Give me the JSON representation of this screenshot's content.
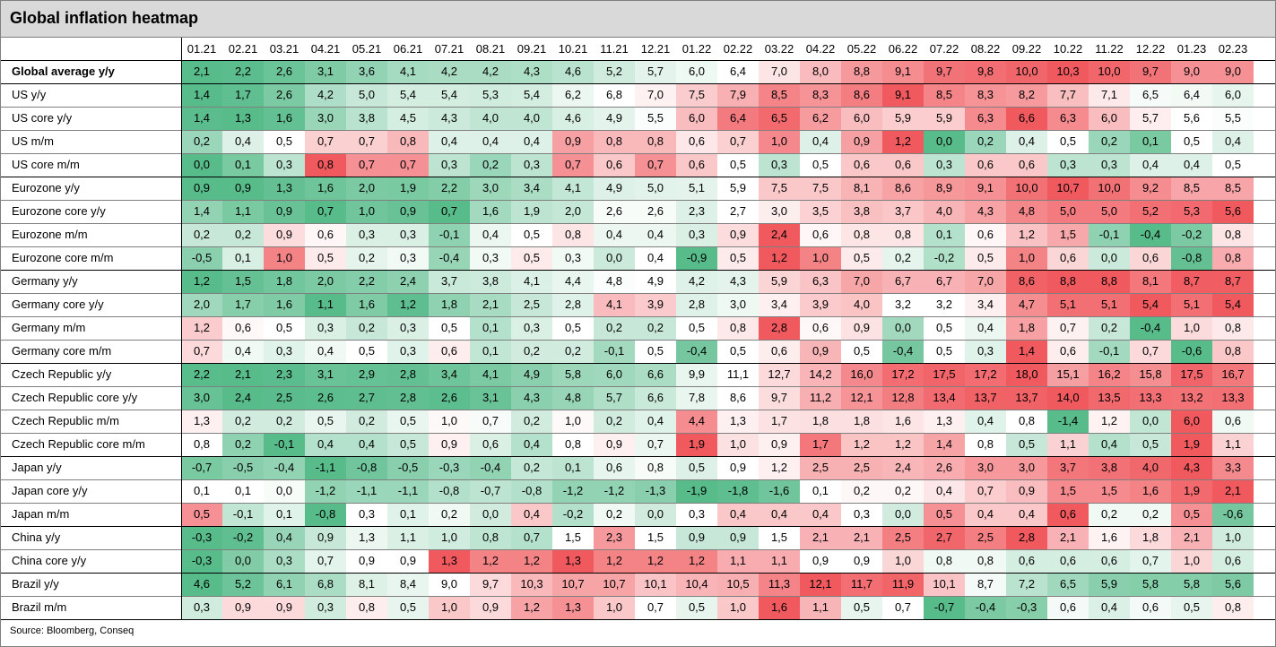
{
  "title": "Global inflation heatmap",
  "source": "Source: Bloomberg, Conseq",
  "colors": {
    "low": "#57bb8a",
    "mid": "#ffffff",
    "high": "#f0595e",
    "header_bg": "#d9d9d9"
  },
  "chart_data": {
    "type": "heatmap",
    "title": "Global inflation heatmap",
    "x": [
      "01.21",
      "02.21",
      "03.21",
      "04.21",
      "05.21",
      "06.21",
      "07.21",
      "08.21",
      "09.21",
      "10.21",
      "11.21",
      "12.21",
      "01.22",
      "02.22",
      "03.22",
      "04.22",
      "05.22",
      "06.22",
      "07.22",
      "08.22",
      "09.22",
      "10.22",
      "11.22",
      "12.22",
      "01.23",
      "02.23"
    ],
    "rows": [
      {
        "label": "Global average y/y",
        "group": 0,
        "values": [
          "2,1",
          "2,2",
          "2,6",
          "3,1",
          "3,6",
          "4,1",
          "4,2",
          "4,2",
          "4,3",
          "4,6",
          "5,2",
          "5,7",
          "6,0",
          "6,4",
          "7,0",
          "8,0",
          "8,8",
          "9,1",
          "9,7",
          "9,8",
          "10,0",
          "10,3",
          "10,0",
          "9,7",
          "9,0",
          "9,0"
        ]
      },
      {
        "label": "US y/y",
        "group": 1,
        "values": [
          "1,4",
          "1,7",
          "2,6",
          "4,2",
          "5,0",
          "5,4",
          "5,4",
          "5,3",
          "5,4",
          "6,2",
          "6,8",
          "7,0",
          "7,5",
          "7,9",
          "8,5",
          "8,3",
          "8,6",
          "9,1",
          "8,5",
          "8,3",
          "8,2",
          "7,7",
          "7,1",
          "6,5",
          "6,4",
          "6,0"
        ]
      },
      {
        "label": "US core y/y",
        "group": 1,
        "values": [
          "1,4",
          "1,3",
          "1,6",
          "3,0",
          "3,8",
          "4,5",
          "4,3",
          "4,0",
          "4,0",
          "4,6",
          "4,9",
          "5,5",
          "6,0",
          "6,4",
          "6,5",
          "6,2",
          "6,0",
          "5,9",
          "5,9",
          "6,3",
          "6,6",
          "6,3",
          "6,0",
          "5,7",
          "5,6",
          "5,5"
        ]
      },
      {
        "label": "US m/m",
        "group": 1,
        "values": [
          "0,2",
          "0,4",
          "0,5",
          "0,7",
          "0,7",
          "0,8",
          "0,4",
          "0,4",
          "0,4",
          "0,9",
          "0,8",
          "0,8",
          "0,6",
          "0,7",
          "1,0",
          "0,4",
          "0,9",
          "1,2",
          "0,0",
          "0,2",
          "0,4",
          "0,5",
          "0,2",
          "0,1",
          "0,5",
          "0,4"
        ]
      },
      {
        "label": "US core m/m",
        "group": 1,
        "values": [
          "0,0",
          "0,1",
          "0,3",
          "0,8",
          "0,7",
          "0,7",
          "0,3",
          "0,2",
          "0,3",
          "0,7",
          "0,6",
          "0,7",
          "0,6",
          "0,5",
          "0,3",
          "0,5",
          "0,6",
          "0,6",
          "0,3",
          "0,6",
          "0,6",
          "0,3",
          "0,3",
          "0,4",
          "0,4",
          "0,5"
        ]
      },
      {
        "label": "Eurozone y/y",
        "group": 2,
        "values": [
          "0,9",
          "0,9",
          "1,3",
          "1,6",
          "2,0",
          "1,9",
          "2,2",
          "3,0",
          "3,4",
          "4,1",
          "4,9",
          "5,0",
          "5,1",
          "5,9",
          "7,5",
          "7,5",
          "8,1",
          "8,6",
          "8,9",
          "9,1",
          "10,0",
          "10,7",
          "10,0",
          "9,2",
          "8,5",
          "8,5"
        ]
      },
      {
        "label": "Eurozone core y/y",
        "group": 2,
        "values": [
          "1,4",
          "1,1",
          "0,9",
          "0,7",
          "1,0",
          "0,9",
          "0,7",
          "1,6",
          "1,9",
          "2,0",
          "2,6",
          "2,6",
          "2,3",
          "2,7",
          "3,0",
          "3,5",
          "3,8",
          "3,7",
          "4,0",
          "4,3",
          "4,8",
          "5,0",
          "5,0",
          "5,2",
          "5,3",
          "5,6"
        ]
      },
      {
        "label": "Eurozone m/m",
        "group": 2,
        "values": [
          "0,2",
          "0,2",
          "0,9",
          "0,6",
          "0,3",
          "0,3",
          "-0,1",
          "0,4",
          "0,5",
          "0,8",
          "0,4",
          "0,4",
          "0,3",
          "0,9",
          "2,4",
          "0,6",
          "0,8",
          "0,8",
          "0,1",
          "0,6",
          "1,2",
          "1,5",
          "-0,1",
          "-0,4",
          "-0,2",
          "0,8"
        ]
      },
      {
        "label": "Eurozone core m/m",
        "group": 2,
        "values": [
          "-0,5",
          "0,1",
          "1,0",
          "0,5",
          "0,2",
          "0,3",
          "-0,4",
          "0,3",
          "0,5",
          "0,3",
          "0,0",
          "0,4",
          "-0,9",
          "0,5",
          "1,2",
          "1,0",
          "0,5",
          "0,2",
          "-0,2",
          "0,5",
          "1,0",
          "0,6",
          "0,0",
          "0,6",
          "-0,8",
          "0,8"
        ]
      },
      {
        "label": "Germany y/y",
        "group": 3,
        "values": [
          "1,2",
          "1,5",
          "1,8",
          "2,0",
          "2,2",
          "2,4",
          "3,7",
          "3,8",
          "4,1",
          "4,4",
          "4,8",
          "4,9",
          "4,2",
          "4,3",
          "5,9",
          "6,3",
          "7,0",
          "6,7",
          "6,7",
          "7,0",
          "8,6",
          "8,8",
          "8,8",
          "8,1",
          "8,7",
          "8,7"
        ]
      },
      {
        "label": "Germany core y/y",
        "group": 3,
        "values": [
          "2,0",
          "1,7",
          "1,6",
          "1,1",
          "1,6",
          "1,2",
          "1,8",
          "2,1",
          "2,5",
          "2,8",
          "4,1",
          "3,9",
          "2,8",
          "3,0",
          "3,4",
          "3,9",
          "4,0",
          "3,2",
          "3,2",
          "3,4",
          "4,7",
          "5,1",
          "5,1",
          "5,4",
          "5,1",
          "5,4"
        ]
      },
      {
        "label": "Germany m/m",
        "group": 3,
        "values": [
          "1,2",
          "0,6",
          "0,5",
          "0,3",
          "0,2",
          "0,3",
          "0,5",
          "0,1",
          "0,3",
          "0,5",
          "0,2",
          "0,2",
          "0,5",
          "0,8",
          "2,8",
          "0,6",
          "0,9",
          "0,0",
          "0,5",
          "0,4",
          "1,8",
          "0,7",
          "0,2",
          "-0,4",
          "1,0",
          "0,8"
        ]
      },
      {
        "label": "Germany core m/m",
        "group": 3,
        "values": [
          "0,7",
          "0,4",
          "0,3",
          "0,4",
          "0,5",
          "0,3",
          "0,6",
          "0,1",
          "0,2",
          "0,2",
          "-0,1",
          "0,5",
          "-0,4",
          "0,5",
          "0,6",
          "0,9",
          "0,5",
          "-0,4",
          "0,5",
          "0,3",
          "1,4",
          "0,6",
          "-0,1",
          "0,7",
          "-0,6",
          "0,8"
        ]
      },
      {
        "label": "Czech Republic y/y",
        "group": 4,
        "values": [
          "2,2",
          "2,1",
          "2,3",
          "3,1",
          "2,9",
          "2,8",
          "3,4",
          "4,1",
          "4,9",
          "5,8",
          "6,0",
          "6,6",
          "9,9",
          "11,1",
          "12,7",
          "14,2",
          "16,0",
          "17,2",
          "17,5",
          "17,2",
          "18,0",
          "15,1",
          "16,2",
          "15,8",
          "17,5",
          "16,7"
        ]
      },
      {
        "label": "Czech Republic core y/y",
        "group": 4,
        "values": [
          "3,0",
          "2,4",
          "2,5",
          "2,6",
          "2,7",
          "2,8",
          "2,6",
          "3,1",
          "4,3",
          "4,8",
          "5,7",
          "6,6",
          "7,8",
          "8,6",
          "9,7",
          "11,2",
          "12,1",
          "12,8",
          "13,4",
          "13,7",
          "13,7",
          "14,0",
          "13,5",
          "13,3",
          "13,2",
          "13,3"
        ]
      },
      {
        "label": "Czech Republic m/m",
        "group": 4,
        "values": [
          "1,3",
          "0,2",
          "0,2",
          "0,5",
          "0,2",
          "0,5",
          "1,0",
          "0,7",
          "0,2",
          "1,0",
          "0,2",
          "0,4",
          "4,4",
          "1,3",
          "1,7",
          "1,8",
          "1,8",
          "1,6",
          "1,3",
          "0,4",
          "0,8",
          "-1,4",
          "1,2",
          "0,0",
          "6,0",
          "0,6"
        ]
      },
      {
        "label": "Czech Republic core m/m",
        "group": 4,
        "values": [
          "0,8",
          "0,2",
          "-0,1",
          "0,4",
          "0,4",
          "0,5",
          "0,9",
          "0,6",
          "0,4",
          "0,8",
          "0,9",
          "0,7",
          "1,9",
          "1,0",
          "0,9",
          "1,7",
          "1,2",
          "1,2",
          "1,4",
          "0,8",
          "0,5",
          "1,1",
          "0,4",
          "0,5",
          "1,9",
          "1,1"
        ]
      },
      {
        "label": "Japan y/y",
        "group": 5,
        "values": [
          "-0,7",
          "-0,5",
          "-0,4",
          "-1,1",
          "-0,8",
          "-0,5",
          "-0,3",
          "-0,4",
          "0,2",
          "0,1",
          "0,6",
          "0,8",
          "0,5",
          "0,9",
          "1,2",
          "2,5",
          "2,5",
          "2,4",
          "2,6",
          "3,0",
          "3,0",
          "3,7",
          "3,8",
          "4,0",
          "4,3",
          "3,3"
        ]
      },
      {
        "label": "Japan core y/y",
        "group": 5,
        "values": [
          "0,1",
          "0,1",
          "0,0",
          "-1,2",
          "-1,1",
          "-1,1",
          "-0,8",
          "-0,7",
          "-0,8",
          "-1,2",
          "-1,2",
          "-1,3",
          "-1,9",
          "-1,8",
          "-1,6",
          "0,1",
          "0,2",
          "0,2",
          "0,4",
          "0,7",
          "0,9",
          "1,5",
          "1,5",
          "1,6",
          "1,9",
          "2,1"
        ]
      },
      {
        "label": "Japan m/m",
        "group": 5,
        "values": [
          "0,5",
          "-0,1",
          "0,1",
          "-0,8",
          "0,3",
          "0,1",
          "0,2",
          "0,0",
          "0,4",
          "-0,2",
          "0,2",
          "0,0",
          "0,3",
          "0,4",
          "0,4",
          "0,4",
          "0,3",
          "0,0",
          "0,5",
          "0,4",
          "0,4",
          "0,6",
          "0,2",
          "0,2",
          "0,5",
          "-0,6"
        ]
      },
      {
        "label": "China y/y",
        "group": 6,
        "values": [
          "-0,3",
          "-0,2",
          "0,4",
          "0,9",
          "1,3",
          "1,1",
          "1,0",
          "0,8",
          "0,7",
          "1,5",
          "2,3",
          "1,5",
          "0,9",
          "0,9",
          "1,5",
          "2,1",
          "2,1",
          "2,5",
          "2,7",
          "2,5",
          "2,8",
          "2,1",
          "1,6",
          "1,8",
          "2,1",
          "1,0"
        ]
      },
      {
        "label": "China core y/y",
        "group": 6,
        "values": [
          "-0,3",
          "0,0",
          "0,3",
          "0,7",
          "0,9",
          "0,9",
          "1,3",
          "1,2",
          "1,2",
          "1,3",
          "1,2",
          "1,2",
          "1,2",
          "1,1",
          "1,1",
          "0,9",
          "0,9",
          "1,0",
          "0,8",
          "0,8",
          "0,6",
          "0,6",
          "0,6",
          "0,7",
          "1,0",
          "0,6"
        ]
      },
      {
        "label": "Brazil y/y",
        "group": 7,
        "values": [
          "4,6",
          "5,2",
          "6,1",
          "6,8",
          "8,1",
          "8,4",
          "9,0",
          "9,7",
          "10,3",
          "10,7",
          "10,7",
          "10,1",
          "10,4",
          "10,5",
          "11,3",
          "12,1",
          "11,7",
          "11,9",
          "10,1",
          "8,7",
          "7,2",
          "6,5",
          "5,9",
          "5,8",
          "5,8",
          "5,6"
        ]
      },
      {
        "label": "Brazil m/m",
        "group": 7,
        "values": [
          "0,3",
          "0,9",
          "0,9",
          "0,3",
          "0,8",
          "0,5",
          "1,0",
          "0,9",
          "1,2",
          "1,3",
          "1,0",
          "0,7",
          "0,5",
          "1,0",
          "1,6",
          "1,1",
          "0,5",
          "0,7",
          "-0,7",
          "-0,4",
          "-0,3",
          "0,6",
          "0,4",
          "0,6",
          "0,5",
          "0,8"
        ]
      }
    ]
  }
}
